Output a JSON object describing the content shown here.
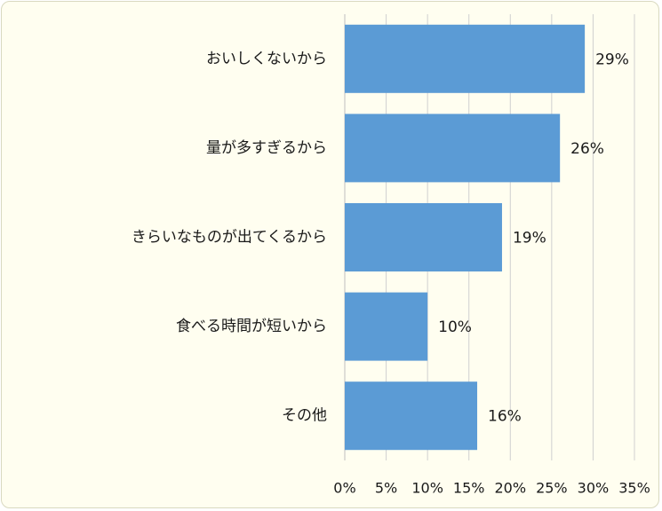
{
  "chart_data": {
    "type": "bar",
    "orientation": "horizontal",
    "categories": [
      "おいしくないから",
      "量が多すぎるから",
      "きらいなものが出てくるから",
      "食べる時間が短いから",
      "その他"
    ],
    "values": [
      29,
      26,
      19,
      10,
      16
    ],
    "value_labels": [
      "29%",
      "26%",
      "19%",
      "10%",
      "16%"
    ],
    "xlim": [
      0,
      35
    ],
    "x_ticks": [
      0,
      5,
      10,
      15,
      20,
      25,
      30,
      35
    ],
    "x_tick_labels": [
      "0%",
      "5%",
      "10%",
      "15%",
      "20%",
      "25%",
      "30%",
      "35%"
    ],
    "title": "",
    "xlabel": "",
    "ylabel": "",
    "grid": true,
    "legend": "none",
    "bar_color": "#5b9bd5",
    "background_color": "#fffef0"
  }
}
